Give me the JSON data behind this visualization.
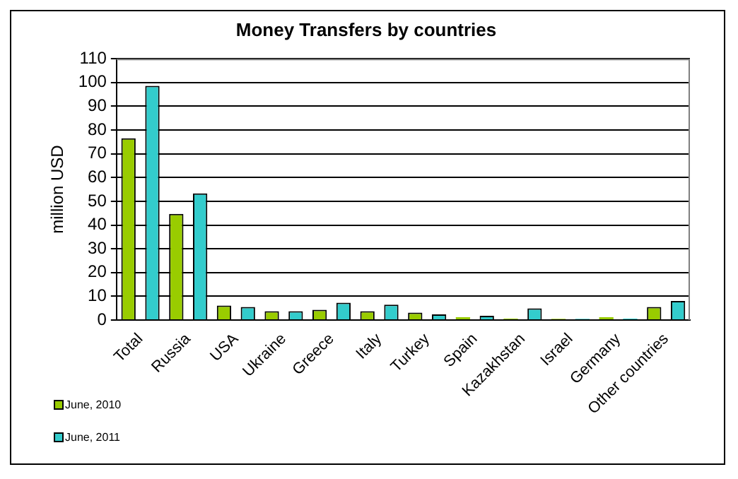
{
  "chart_data": {
    "type": "bar",
    "title": "Money Transfers by countries",
    "ylabel": "million USD",
    "categories": [
      "Total",
      "Russia",
      "USA",
      "Ukraine",
      "Greece",
      "Italy",
      "Turkey",
      "Spain",
      "Kazakhstan",
      "Israel",
      "Germany",
      "Other countries"
    ],
    "series": [
      {
        "name": "June, 2010",
        "color": "#99cc00",
        "values": [
          76.5,
          44.7,
          6.1,
          3.7,
          4.3,
          3.7,
          3.1,
          1.2,
          0.6,
          0.5,
          1.2,
          5.5
        ]
      },
      {
        "name": "June, 2011",
        "color": "#33cccc",
        "values": [
          98.6,
          53.3,
          5.5,
          3.7,
          7.3,
          6.5,
          2.4,
          1.8,
          4.9,
          0.5,
          0.6,
          8.0
        ]
      }
    ],
    "ylim": [
      0,
      110
    ],
    "yticks": [
      0,
      10,
      20,
      30,
      40,
      50,
      60,
      70,
      80,
      90,
      100,
      110
    ],
    "grid": "y",
    "legend": "bottom left"
  }
}
